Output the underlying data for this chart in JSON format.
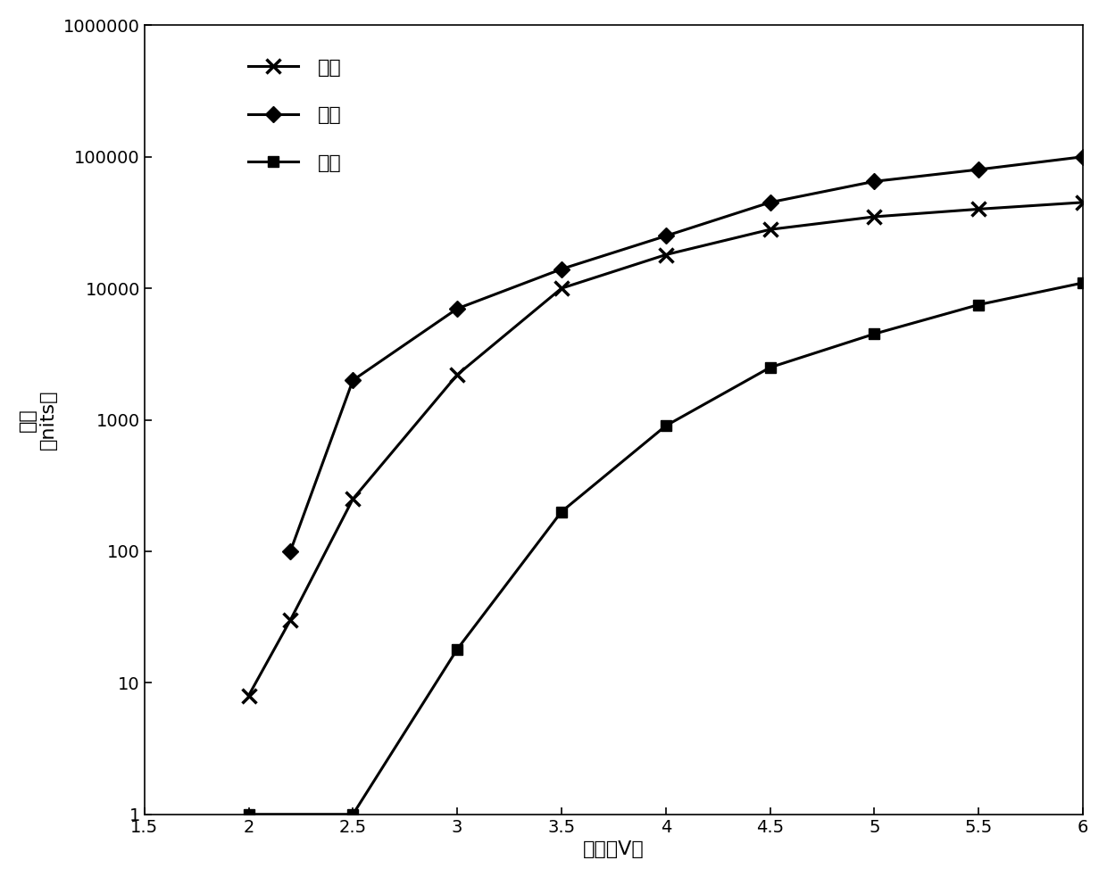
{
  "red_x": [
    2.0,
    2.2,
    2.5,
    3.0,
    3.5,
    4.0,
    4.5,
    5.0,
    5.5,
    6.0
  ],
  "red_y": [
    8,
    30,
    250,
    2200,
    10000,
    18000,
    28000,
    35000,
    40000,
    45000
  ],
  "green_x": [
    2.2,
    2.5,
    3.0,
    3.5,
    4.0,
    4.5,
    5.0,
    5.5,
    6.0
  ],
  "green_y": [
    100,
    2000,
    7000,
    14000,
    25000,
    45000,
    65000,
    80000,
    100000
  ],
  "blue_x": [
    2.0,
    2.5,
    3.0,
    3.5,
    4.0,
    4.5,
    5.0,
    5.5,
    6.0
  ],
  "blue_y": [
    1,
    1,
    18,
    200,
    900,
    2500,
    4500,
    7500,
    11000
  ],
  "xlabel": "电压（V）",
  "ylabel_line1": "亮度",
  "ylabel_line2": "（nits）",
  "legend_red": "红色",
  "legend_green": "绿色",
  "legend_blue": "蓝色",
  "xlim": [
    1.5,
    6.0
  ],
  "ylim": [
    1,
    1000000
  ],
  "xticks": [
    1.5,
    2.0,
    2.5,
    3.0,
    3.5,
    4.0,
    4.5,
    5.0,
    5.5,
    6.0
  ],
  "xtick_labels": [
    "1.5",
    "2",
    "2.5",
    "3",
    "3.5",
    "4",
    "4.5",
    "5",
    "5.5",
    "6"
  ],
  "yticks": [
    1,
    10,
    100,
    1000,
    10000,
    100000,
    1000000
  ],
  "ytick_labels": [
    "1",
    "10",
    "100",
    "1000",
    "10000",
    "100000",
    "1000000"
  ],
  "line_color": "#000000",
  "background_color": "#ffffff",
  "label_fontsize": 16,
  "legend_fontsize": 16,
  "tick_fontsize": 14
}
